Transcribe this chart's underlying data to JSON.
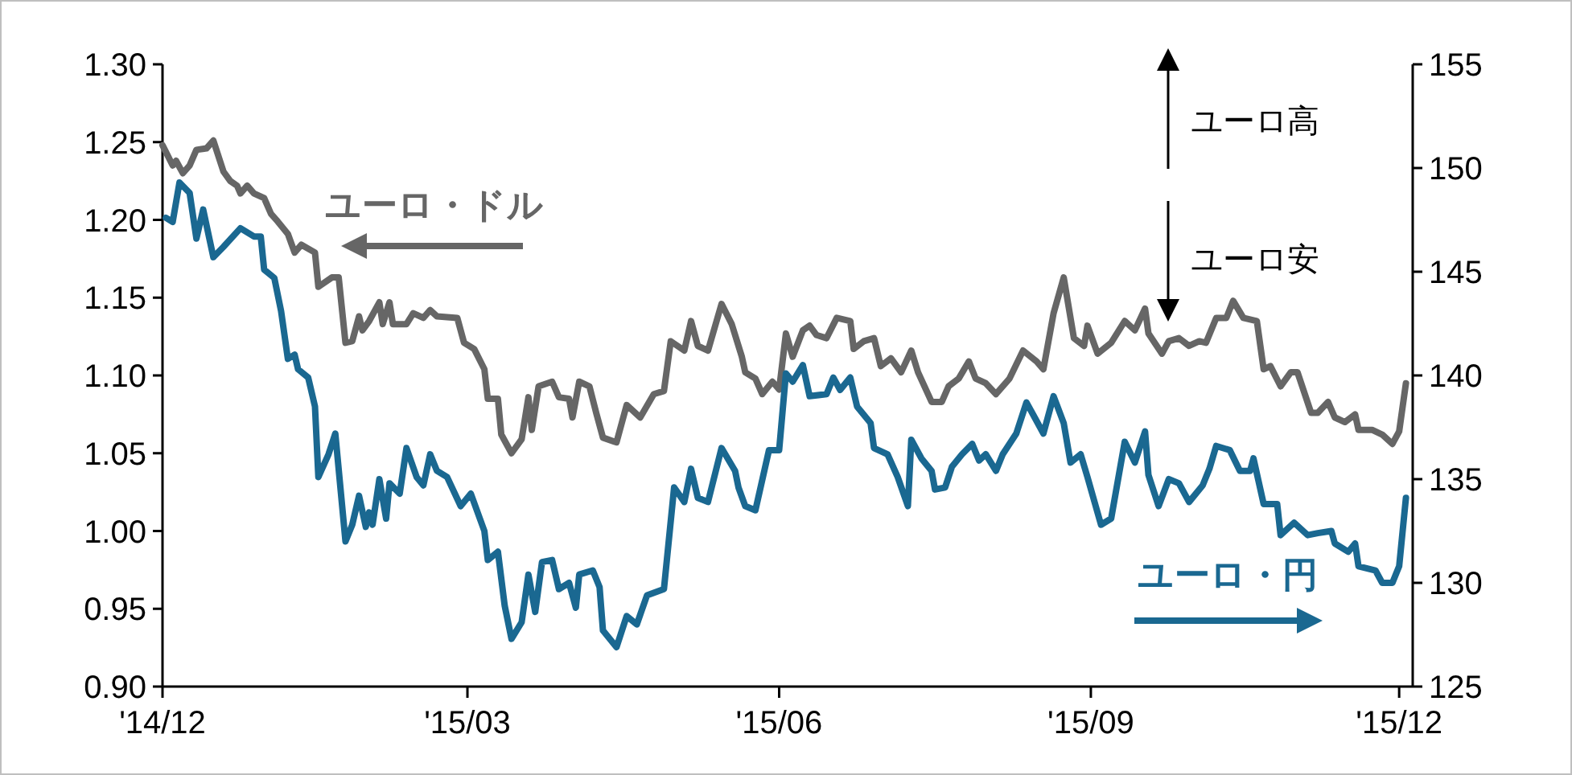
{
  "chart_data": {
    "type": "line",
    "xlim": [
      "2014-12-01",
      "2015-12-05"
    ],
    "xticks": [
      {
        "value": "2014-12-01",
        "label": "'14/12"
      },
      {
        "value": "2015-03-01",
        "label": "'15/03"
      },
      {
        "value": "2015-06-01",
        "label": "'15/06"
      },
      {
        "value": "2015-09-01",
        "label": "'15/09"
      },
      {
        "value": "2015-12-01",
        "label": "'15/12"
      }
    ],
    "ylim": [
      0.9,
      1.3
    ],
    "yticks": [
      {
        "value": 0.9,
        "label": "0.90"
      },
      {
        "value": 0.95,
        "label": "0.95"
      },
      {
        "value": 1.0,
        "label": "1.00"
      },
      {
        "value": 1.05,
        "label": "1.05"
      },
      {
        "value": 1.1,
        "label": "1.10"
      },
      {
        "value": 1.15,
        "label": "1.15"
      },
      {
        "value": 1.2,
        "label": "1.20"
      },
      {
        "value": 1.25,
        "label": "1.25"
      },
      {
        "value": 1.3,
        "label": "1.30"
      }
    ],
    "y2lim": [
      125,
      155
    ],
    "y2ticks": [
      125,
      130,
      135,
      140,
      145,
      150,
      155
    ],
    "annotations": [
      "ユーロ高",
      "ユーロ安"
    ],
    "series": [
      {
        "name": "ユーロ・ドル",
        "color": "#666666",
        "x": [
          "2014-12-01",
          "2014-12-04",
          "2014-12-05",
          "2014-12-07",
          "2014-12-09",
          "2014-12-11",
          "2014-12-14",
          "2014-12-16",
          "2014-12-19",
          "2014-12-21",
          "2014-12-23",
          "2014-12-24",
          "2014-12-26",
          "2014-12-28",
          "2014-12-31",
          "2015-01-02",
          "2015-01-04",
          "2015-01-07",
          "2015-01-09",
          "2015-01-11",
          "2015-01-15",
          "2015-01-16",
          "2015-01-20",
          "2015-01-22",
          "2015-01-24",
          "2015-01-26",
          "2015-01-28",
          "2015-01-29",
          "2015-01-31",
          "2015-02-03",
          "2015-02-04",
          "2015-02-06",
          "2015-02-07",
          "2015-02-11",
          "2015-02-13",
          "2015-02-16",
          "2015-02-18",
          "2015-02-20",
          "2015-02-26",
          "2015-02-28",
          "2015-03-03",
          "2015-03-06",
          "2015-03-07",
          "2015-03-10",
          "2015-03-11",
          "2015-03-14",
          "2015-03-17",
          "2015-03-19",
          "2015-03-20",
          "2015-03-22",
          "2015-03-26",
          "2015-03-28",
          "2015-03-31",
          "2015-04-01",
          "2015-04-03",
          "2015-04-06",
          "2015-04-08",
          "2015-04-10",
          "2015-04-14",
          "2015-04-17",
          "2015-04-21",
          "2015-04-25",
          "2015-04-28",
          "2015-04-30",
          "2015-05-04",
          "2015-05-06",
          "2015-05-08",
          "2015-05-11",
          "2015-05-15",
          "2015-05-18",
          "2015-05-21",
          "2015-05-22",
          "2015-05-25",
          "2015-05-27",
          "2015-05-30",
          "2015-06-01",
          "2015-06-03",
          "2015-06-05",
          "2015-06-08",
          "2015-06-10",
          "2015-06-12",
          "2015-06-15",
          "2015-06-18",
          "2015-06-22",
          "2015-06-23",
          "2015-06-26",
          "2015-06-29",
          "2015-07-01",
          "2015-07-04",
          "2015-07-07",
          "2015-07-10",
          "2015-07-12",
          "2015-07-16",
          "2015-07-19",
          "2015-07-21",
          "2015-07-24",
          "2015-07-27",
          "2015-07-29",
          "2015-08-01",
          "2015-08-04",
          "2015-08-08",
          "2015-08-12",
          "2015-08-16",
          "2015-08-18",
          "2015-08-21",
          "2015-08-24",
          "2015-08-27",
          "2015-08-30",
          "2015-08-31",
          "2015-09-03",
          "2015-09-07",
          "2015-09-11",
          "2015-09-14",
          "2015-09-17",
          "2015-09-18",
          "2015-09-22",
          "2015-09-24",
          "2015-09-27",
          "2015-09-30",
          "2015-10-03",
          "2015-10-05",
          "2015-10-08",
          "2015-10-11",
          "2015-10-13",
          "2015-10-16",
          "2015-10-20",
          "2015-10-22",
          "2015-10-24",
          "2015-10-27",
          "2015-10-30",
          "2015-11-01",
          "2015-11-05",
          "2015-11-07",
          "2015-11-10",
          "2015-11-12",
          "2015-11-15",
          "2015-11-18",
          "2015-11-19",
          "2015-11-23",
          "2015-11-26",
          "2015-11-29",
          "2015-12-01",
          "2015-12-03"
        ],
        "values": [
          1.248,
          1.235,
          1.238,
          1.23,
          1.235,
          1.245,
          1.246,
          1.251,
          1.231,
          1.225,
          1.222,
          1.217,
          1.222,
          1.217,
          1.214,
          1.204,
          1.199,
          1.191,
          1.179,
          1.184,
          1.179,
          1.157,
          1.163,
          1.163,
          1.121,
          1.122,
          1.138,
          1.129,
          1.135,
          1.147,
          1.133,
          1.147,
          1.133,
          1.133,
          1.14,
          1.137,
          1.142,
          1.138,
          1.137,
          1.121,
          1.117,
          1.104,
          1.085,
          1.085,
          1.062,
          1.05,
          1.059,
          1.086,
          1.065,
          1.093,
          1.096,
          1.086,
          1.085,
          1.073,
          1.096,
          1.093,
          1.076,
          1.06,
          1.057,
          1.081,
          1.073,
          1.088,
          1.09,
          1.122,
          1.116,
          1.135,
          1.119,
          1.116,
          1.146,
          1.133,
          1.112,
          1.102,
          1.098,
          1.088,
          1.096,
          1.091,
          1.127,
          1.112,
          1.129,
          1.132,
          1.126,
          1.124,
          1.137,
          1.135,
          1.117,
          1.122,
          1.124,
          1.106,
          1.111,
          1.102,
          1.116,
          1.102,
          1.083,
          1.083,
          1.093,
          1.098,
          1.109,
          1.098,
          1.095,
          1.088,
          1.098,
          1.116,
          1.109,
          1.104,
          1.14,
          1.163,
          1.124,
          1.119,
          1.132,
          1.114,
          1.121,
          1.135,
          1.129,
          1.143,
          1.127,
          1.114,
          1.122,
          1.124,
          1.119,
          1.122,
          1.121,
          1.137,
          1.137,
          1.148,
          1.137,
          1.135,
          1.104,
          1.106,
          1.093,
          1.102,
          1.102,
          1.076,
          1.076,
          1.083,
          1.073,
          1.07,
          1.075,
          1.065,
          1.065,
          1.062,
          1.056,
          1.064,
          1.095
        ]
      },
      {
        "name": "ユーロ・円",
        "color": "#1a6891",
        "axis": "y2",
        "x": [
          "2014-12-02",
          "2014-12-04",
          "2014-12-06",
          "2014-12-09",
          "2014-12-11",
          "2014-12-13",
          "2014-12-16",
          "2014-12-19",
          "2014-12-24",
          "2014-12-28",
          "2014-12-30",
          "2014-12-31",
          "2015-01-03",
          "2015-01-05",
          "2015-01-07",
          "2015-01-09",
          "2015-01-10",
          "2015-01-13",
          "2015-01-15",
          "2015-01-16",
          "2015-01-19",
          "2015-01-21",
          "2015-01-24",
          "2015-01-26",
          "2015-01-28",
          "2015-01-30",
          "2015-01-31",
          "2015-02-01",
          "2015-02-03",
          "2015-02-05",
          "2015-02-06",
          "2015-02-09",
          "2015-02-11",
          "2015-02-14",
          "2015-02-16",
          "2015-02-18",
          "2015-02-20",
          "2015-02-23",
          "2015-02-27",
          "2015-03-02",
          "2015-03-06",
          "2015-03-07",
          "2015-03-10",
          "2015-03-12",
          "2015-03-14",
          "2015-03-17",
          "2015-03-19",
          "2015-03-21",
          "2015-03-23",
          "2015-03-26",
          "2015-03-28",
          "2015-03-31",
          "2015-04-02",
          "2015-04-03",
          "2015-04-07",
          "2015-04-09",
          "2015-04-10",
          "2015-04-14",
          "2015-04-17",
          "2015-04-20",
          "2015-04-23",
          "2015-04-28",
          "2015-05-01",
          "2015-05-04",
          "2015-05-06",
          "2015-05-08",
          "2015-05-11",
          "2015-05-15",
          "2015-05-19",
          "2015-05-20",
          "2015-05-22",
          "2015-05-25",
          "2015-05-29",
          "2015-06-01",
          "2015-06-03",
          "2015-06-05",
          "2015-06-08",
          "2015-06-10",
          "2015-06-15",
          "2015-06-17",
          "2015-06-19",
          "2015-06-22",
          "2015-06-24",
          "2015-06-28",
          "2015-06-29",
          "2015-07-03",
          "2015-07-06",
          "2015-07-09",
          "2015-07-10",
          "2015-07-13",
          "2015-07-16",
          "2015-07-17",
          "2015-07-20",
          "2015-07-22",
          "2015-07-25",
          "2015-07-28",
          "2015-07-30",
          "2015-08-01",
          "2015-08-04",
          "2015-08-06",
          "2015-08-10",
          "2015-08-13",
          "2015-08-15",
          "2015-08-18",
          "2015-08-21",
          "2015-08-24",
          "2015-08-26",
          "2015-08-29",
          "2015-08-31",
          "2015-09-04",
          "2015-09-07",
          "2015-09-11",
          "2015-09-14",
          "2015-09-17",
          "2015-09-18",
          "2015-09-21",
          "2015-09-24",
          "2015-09-27",
          "2015-09-30",
          "2015-10-04",
          "2015-10-06",
          "2015-10-08",
          "2015-10-12",
          "2015-10-15",
          "2015-10-18",
          "2015-10-19",
          "2015-10-22",
          "2015-10-26",
          "2015-10-27",
          "2015-10-31",
          "2015-11-04",
          "2015-11-07",
          "2015-11-11",
          "2015-11-12",
          "2015-11-16",
          "2015-11-18",
          "2015-11-19",
          "2015-11-24",
          "2015-11-26",
          "2015-11-29",
          "2015-12-01",
          "2015-12-03"
        ],
        "values": [
          147.6,
          147.4,
          149.3,
          148.8,
          146.6,
          148.0,
          145.7,
          146.2,
          147.1,
          146.7,
          146.7,
          145.1,
          144.7,
          143.1,
          140.8,
          141.0,
          140.3,
          139.9,
          138.5,
          135.1,
          136.2,
          137.2,
          132.0,
          132.8,
          134.2,
          132.7,
          133.4,
          132.8,
          135.0,
          133.1,
          134.8,
          134.3,
          136.5,
          135.1,
          134.7,
          136.2,
          135.4,
          135.1,
          133.7,
          134.3,
          132.5,
          131.1,
          131.5,
          128.9,
          127.3,
          128.1,
          130.4,
          128.6,
          131.0,
          131.1,
          129.7,
          130.0,
          128.8,
          130.4,
          130.6,
          129.8,
          127.7,
          126.9,
          128.4,
          128.0,
          129.4,
          129.7,
          134.6,
          133.9,
          135.5,
          134.1,
          133.9,
          136.5,
          135.4,
          134.6,
          133.7,
          133.5,
          136.4,
          136.4,
          140.1,
          139.7,
          140.5,
          139.0,
          139.1,
          139.9,
          139.3,
          139.9,
          138.5,
          137.7,
          136.5,
          136.2,
          135.1,
          133.7,
          136.9,
          136.0,
          135.4,
          134.5,
          134.6,
          135.6,
          136.2,
          136.7,
          135.9,
          136.2,
          135.4,
          136.2,
          137.2,
          138.7,
          138.1,
          137.2,
          139.0,
          137.7,
          135.8,
          136.2,
          135.1,
          132.8,
          133.1,
          136.8,
          135.8,
          137.3,
          135.2,
          133.7,
          135.0,
          134.8,
          133.9,
          134.7,
          135.5,
          136.6,
          136.4,
          135.4,
          135.4,
          136.0,
          133.8,
          133.8,
          132.3,
          132.9,
          132.3,
          132.4,
          132.5,
          131.9,
          131.5,
          131.9,
          130.8,
          130.6,
          130.0,
          130.0,
          130.8,
          134.1
        ]
      }
    ]
  }
}
